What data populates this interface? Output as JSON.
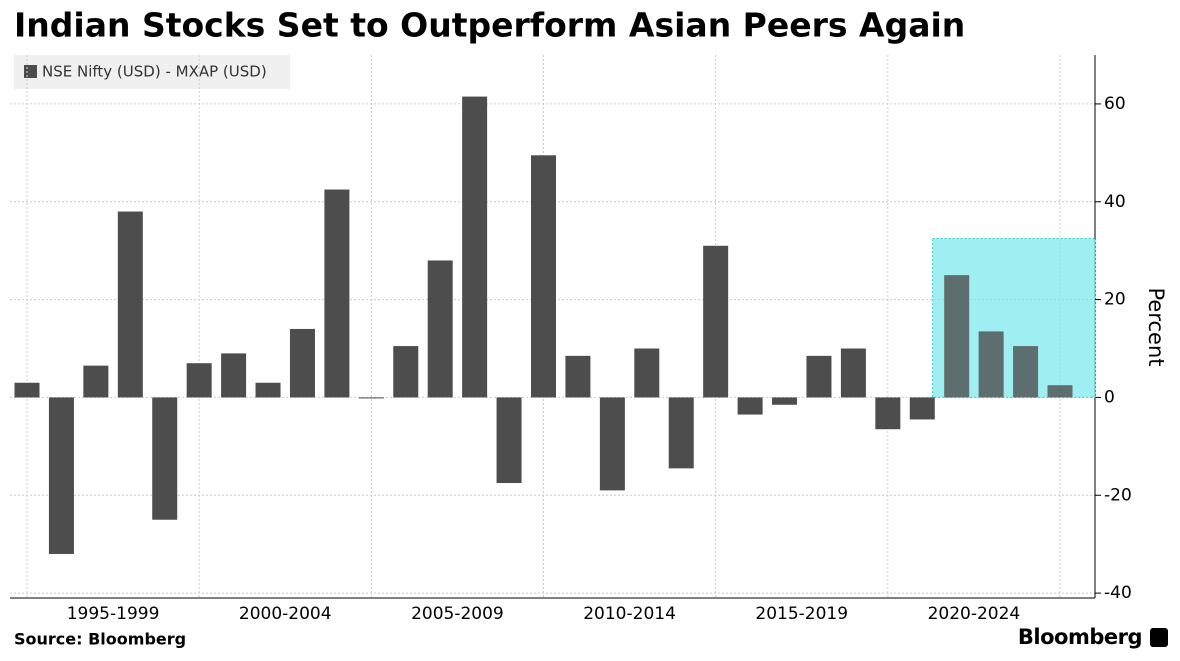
{
  "chart_data": {
    "type": "bar",
    "title": "Indian Stocks Set to Outperform Asian Peers Again",
    "source": "Source: Bloomberg",
    "brand": "Bloomberg",
    "y_label": "Percent",
    "series": [
      {
        "name": "NSE Nifty (USD) - MXAP (USD)",
        "color": "#4d4d4d",
        "values": [
          3,
          -32,
          6.5,
          38,
          -25,
          7,
          9,
          3,
          14,
          42.5,
          0,
          10.5,
          28,
          61.5,
          -17.5,
          49.5,
          8.5,
          -19,
          10,
          -14.5,
          31,
          -3.5,
          -1.5,
          8.5,
          10,
          -6.5,
          -4.5,
          25,
          13.5,
          10.5,
          2.5
        ]
      }
    ],
    "categories": [
      null,
      null,
      null,
      null,
      null,
      null,
      null,
      null,
      null,
      null,
      null,
      null,
      null,
      null,
      null,
      null,
      null,
      null,
      null,
      null,
      null,
      null,
      null,
      null,
      null,
      null,
      null,
      null,
      null,
      null,
      null
    ],
    "x_group_labels": [
      "1995-1999",
      "2000-2004",
      "2005-2009",
      "2010-2014",
      "2015-2019",
      "2020-2024"
    ],
    "ylim": [
      -41,
      70
    ],
    "yticks": [
      -40,
      -20,
      0,
      20,
      40,
      60
    ],
    "grid": true,
    "highlight_color": "#7fe8ee"
  }
}
